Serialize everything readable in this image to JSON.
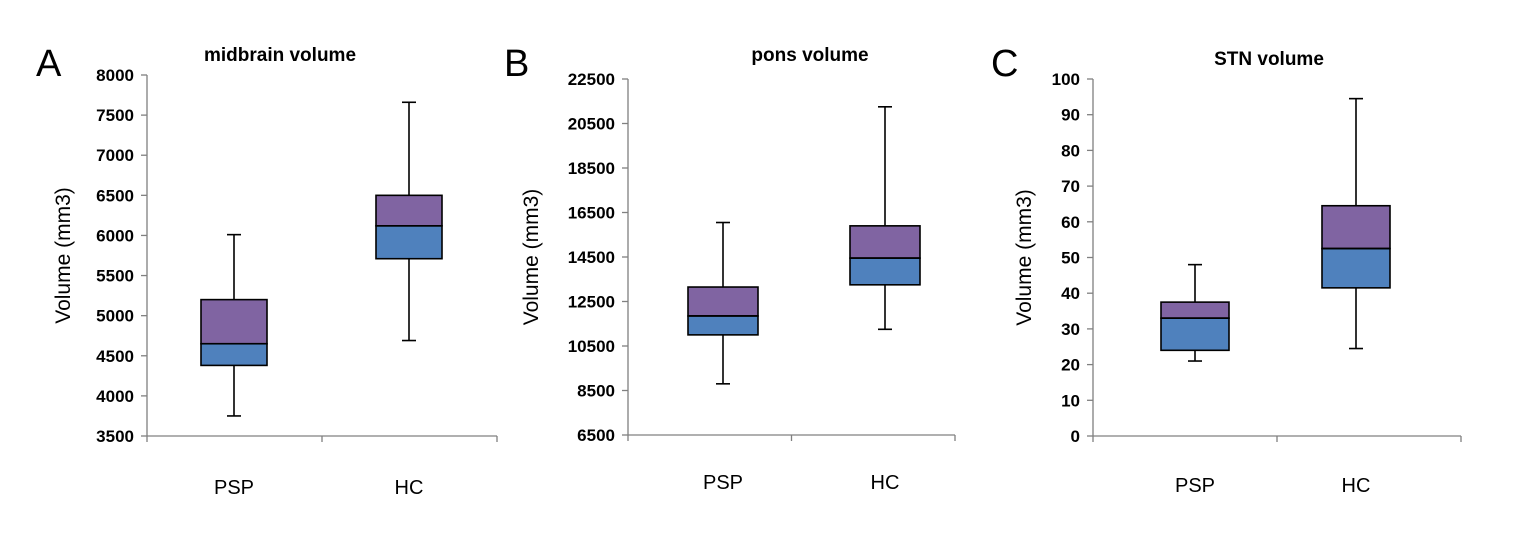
{
  "colors": {
    "upper_box": "#8064A2",
    "lower_box": "#4F81BD",
    "axis": "#808080"
  },
  "chart_data": [
    {
      "type": "box",
      "panel": "A",
      "title": "midbrain volume",
      "xlabel": "",
      "ylabel": "Volume (mm3)",
      "ylim": [
        3500,
        8000
      ],
      "yticks": [
        3500,
        4000,
        4500,
        5000,
        5500,
        6000,
        6500,
        7000,
        7500,
        8000
      ],
      "categories": [
        "PSP",
        "HC"
      ],
      "boxes": [
        {
          "category": "PSP",
          "min": 3750,
          "q1": 4380,
          "median": 4650,
          "q3": 5200,
          "max": 6010
        },
        {
          "category": "HC",
          "min": 4690,
          "q1": 5710,
          "median": 6120,
          "q3": 6500,
          "max": 7660
        }
      ]
    },
    {
      "type": "box",
      "panel": "B",
      "title": "pons volume",
      "xlabel": "",
      "ylabel": "Volume (mm3)",
      "ylim": [
        6500,
        22500
      ],
      "yticks": [
        6500,
        8500,
        10500,
        12500,
        14500,
        16500,
        18500,
        20500,
        22500
      ],
      "categories": [
        "PSP",
        "HC"
      ],
      "boxes": [
        {
          "category": "PSP",
          "min": 8800,
          "q1": 11000,
          "median": 11850,
          "q3": 13150,
          "max": 16050
        },
        {
          "category": "HC",
          "min": 11250,
          "q1": 13250,
          "median": 14450,
          "q3": 15900,
          "max": 21250
        }
      ]
    },
    {
      "type": "box",
      "panel": "C",
      "title": "STN volume",
      "xlabel": "",
      "ylabel": "Volume (mm3)",
      "ylim": [
        0,
        100
      ],
      "yticks": [
        0,
        10,
        20,
        30,
        40,
        50,
        60,
        70,
        80,
        90,
        100
      ],
      "categories": [
        "PSP",
        "HC"
      ],
      "boxes": [
        {
          "category": "PSP",
          "min": 21,
          "q1": 24,
          "median": 33,
          "q3": 37.5,
          "max": 48
        },
        {
          "category": "HC",
          "min": 24.5,
          "q1": 41.5,
          "median": 52.5,
          "q3": 64.5,
          "max": 94.5
        }
      ]
    }
  ]
}
